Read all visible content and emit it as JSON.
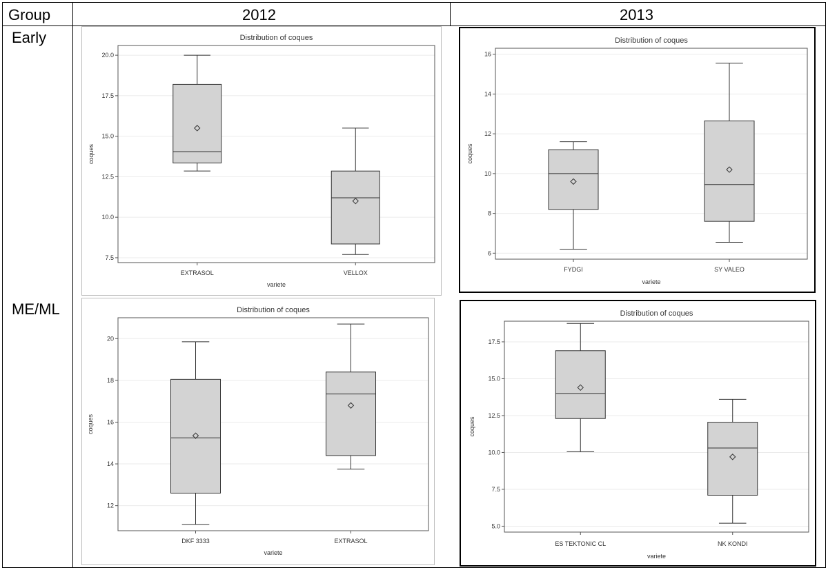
{
  "table": {
    "header_group": "Group",
    "header_col1": "2012",
    "header_col2": "2013",
    "row1_label": "Early",
    "row2_label": "ME/ML"
  },
  "chart_data": [
    {
      "type": "boxplot",
      "title": "Distribution of coques",
      "xlabel": "variete",
      "ylabel": "coques",
      "ylim": [
        7.2,
        20.6
      ],
      "yticks": [
        7.5,
        10.0,
        12.5,
        15.0,
        17.5,
        20.0
      ],
      "ytick_labels": [
        "7.5",
        "10.0",
        "12.5",
        "15.0",
        "17.5",
        "20.0"
      ],
      "categories": [
        "EXTRASOL",
        "VELLOX"
      ],
      "boxes": [
        {
          "min": 12.85,
          "q1": 13.35,
          "median": 14.05,
          "q3": 18.2,
          "max": 20.0,
          "mean": 15.5
        },
        {
          "min": 7.7,
          "q1": 8.35,
          "median": 11.2,
          "q3": 12.85,
          "max": 15.5,
          "mean": 11.0
        }
      ],
      "frame": "light"
    },
    {
      "type": "boxplot",
      "title": "Distribution of coques",
      "xlabel": "variete",
      "ylabel": "coques",
      "ylim": [
        5.7,
        16.3
      ],
      "yticks": [
        6,
        8,
        10,
        12,
        14,
        16
      ],
      "ytick_labels": [
        "6",
        "8",
        "10",
        "12",
        "14",
        "16"
      ],
      "categories": [
        "FYDGI",
        "SY VALEO"
      ],
      "boxes": [
        {
          "min": 6.2,
          "q1": 8.2,
          "median": 10.0,
          "q3": 11.2,
          "max": 11.6,
          "mean": 9.6
        },
        {
          "min": 6.55,
          "q1": 7.6,
          "median": 9.45,
          "q3": 12.65,
          "max": 15.55,
          "mean": 10.2
        }
      ],
      "frame": "bold"
    },
    {
      "type": "boxplot",
      "title": "Distribution of coques",
      "xlabel": "variete",
      "ylabel": "coques",
      "ylim": [
        10.8,
        21.0
      ],
      "yticks": [
        12,
        14,
        16,
        18,
        20
      ],
      "ytick_labels": [
        "12",
        "14",
        "16",
        "18",
        "20"
      ],
      "categories": [
        "DKF 3333",
        "EXTRASOL"
      ],
      "boxes": [
        {
          "min": 11.1,
          "q1": 12.6,
          "median": 15.25,
          "q3": 18.05,
          "max": 19.85,
          "mean": 15.35
        },
        {
          "min": 13.75,
          "q1": 14.4,
          "median": 17.35,
          "q3": 18.4,
          "max": 20.7,
          "mean": 16.8
        }
      ],
      "frame": "light"
    },
    {
      "type": "boxplot",
      "title": "Distribution of coques",
      "xlabel": "variete",
      "ylabel": "coques",
      "ylim": [
        4.6,
        18.9
      ],
      "yticks": [
        5.0,
        7.5,
        10.0,
        12.5,
        15.0,
        17.5
      ],
      "ytick_labels": [
        "5.0",
        "7.5",
        "10.0",
        "12.5",
        "15.0",
        "17.5"
      ],
      "categories": [
        "ES TEKTONIC CL",
        "NK KONDI"
      ],
      "boxes": [
        {
          "min": 10.05,
          "q1": 12.3,
          "median": 14.0,
          "q3": 16.9,
          "max": 18.75,
          "mean": 14.4
        },
        {
          "min": 5.2,
          "q1": 7.1,
          "median": 10.3,
          "q3": 12.05,
          "max": 13.6,
          "mean": 9.7
        }
      ],
      "frame": "bold"
    }
  ]
}
